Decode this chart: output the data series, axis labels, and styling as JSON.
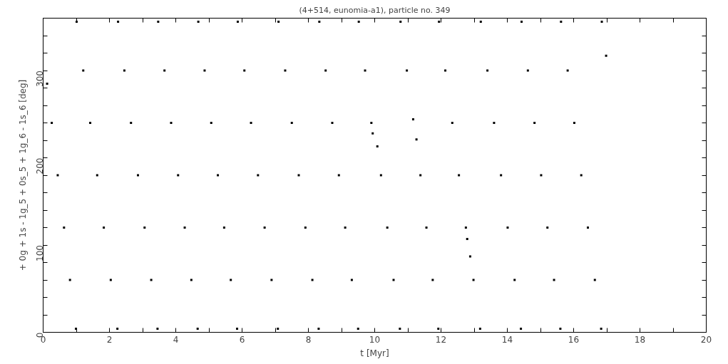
{
  "chart_data": {
    "type": "scatter",
    "title": "(4+514, eunomia-a1), particle no. 349",
    "xlabel": "t [Myr]",
    "ylabel": "+ 0g + 1s - 1g_5 + 0s_5 + 1g_6 - 1s_6 [deg]",
    "xlim": [
      0,
      20
    ],
    "ylim": [
      0,
      360
    ],
    "xticks": [
      0,
      {
        "value": 1,
        "label": null
      },
      2,
      {
        "value": 3,
        "label": null
      },
      4,
      {
        "value": 5,
        "label": null
      },
      6,
      {
        "value": 7,
        "label": null
      },
      8,
      {
        "value": 9,
        "label": null
      },
      10,
      {
        "value": 11,
        "label": null
      },
      12,
      {
        "value": 13,
        "label": null
      },
      14,
      {
        "value": 15,
        "label": null
      },
      16,
      {
        "value": 17,
        "label": null
      },
      18,
      {
        "value": 19,
        "label": null
      },
      20
    ],
    "yticks": [
      0,
      {
        "value": 20,
        "label": null
      },
      {
        "value": 40,
        "label": null
      },
      {
        "value": 60,
        "label": null
      },
      {
        "value": 80,
        "label": null
      },
      100,
      {
        "value": 120,
        "label": null
      },
      {
        "value": 140,
        "label": null
      },
      {
        "value": 160,
        "label": null
      },
      {
        "value": 180,
        "label": null
      },
      200,
      {
        "value": 220,
        "label": null
      },
      {
        "value": 240,
        "label": null
      },
      {
        "value": 260,
        "label": null
      },
      {
        "value": 280,
        "label": null
      },
      300,
      {
        "value": 320,
        "label": null
      },
      {
        "value": 340,
        "label": null
      }
    ],
    "marker": "square",
    "grid": false,
    "series": [
      {
        "color": "#000000",
        "x": [
          0.12,
          0.26,
          0.44,
          0.63,
          0.81,
          0.99,
          1.01,
          1.21,
          1.42,
          1.63,
          1.83,
          2.04,
          2.24,
          2.26,
          2.45,
          2.65,
          2.86,
          3.06,
          3.26,
          3.45,
          3.47,
          3.66,
          3.86,
          4.07,
          4.27,
          4.47,
          4.66,
          4.68,
          4.87,
          5.07,
          5.27,
          5.46,
          5.66,
          5.85,
          5.87,
          6.07,
          6.27,
          6.48,
          6.68,
          6.89,
          7.08,
          7.1,
          7.3,
          7.5,
          7.71,
          7.91,
          8.12,
          8.31,
          8.33,
          8.52,
          8.72,
          8.92,
          9.11,
          9.31,
          9.5,
          9.52,
          9.71,
          9.9,
          9.94,
          10.08,
          10.19,
          10.38,
          10.57,
          10.76,
          10.78,
          10.97,
          11.16,
          11.26,
          11.38,
          11.56,
          11.75,
          11.92,
          11.94,
          12.13,
          12.34,
          12.54,
          12.75,
          12.79,
          12.88,
          12.98,
          13.18,
          13.2,
          13.4,
          13.6,
          13.81,
          14.01,
          14.22,
          14.41,
          14.43,
          14.62,
          14.82,
          15.02,
          15.21,
          15.41,
          15.6,
          15.62,
          15.82,
          16.02,
          16.23,
          16.43,
          16.64,
          16.83,
          16.85,
          16.98
        ],
        "values": [
          285,
          240,
          180,
          120,
          60,
          4,
          356,
          300,
          240,
          180,
          120,
          60,
          4,
          356,
          300,
          240,
          180,
          120,
          60,
          4,
          356,
          300,
          240,
          180,
          120,
          60,
          4,
          356,
          300,
          240,
          180,
          120,
          60,
          4,
          356,
          300,
          240,
          180,
          120,
          60,
          4,
          356,
          300,
          240,
          180,
          120,
          60,
          4,
          356,
          300,
          240,
          180,
          120,
          60,
          4,
          356,
          300,
          240,
          228,
          213,
          180,
          120,
          60,
          4,
          356,
          300,
          244,
          221,
          180,
          120,
          60,
          4,
          356,
          300,
          240,
          180,
          120,
          107,
          87,
          60,
          4,
          356,
          300,
          240,
          180,
          120,
          60,
          4,
          356,
          300,
          240,
          180,
          120,
          60,
          4,
          356,
          300,
          240,
          180,
          120,
          60,
          4,
          356,
          317
        ]
      }
    ]
  }
}
